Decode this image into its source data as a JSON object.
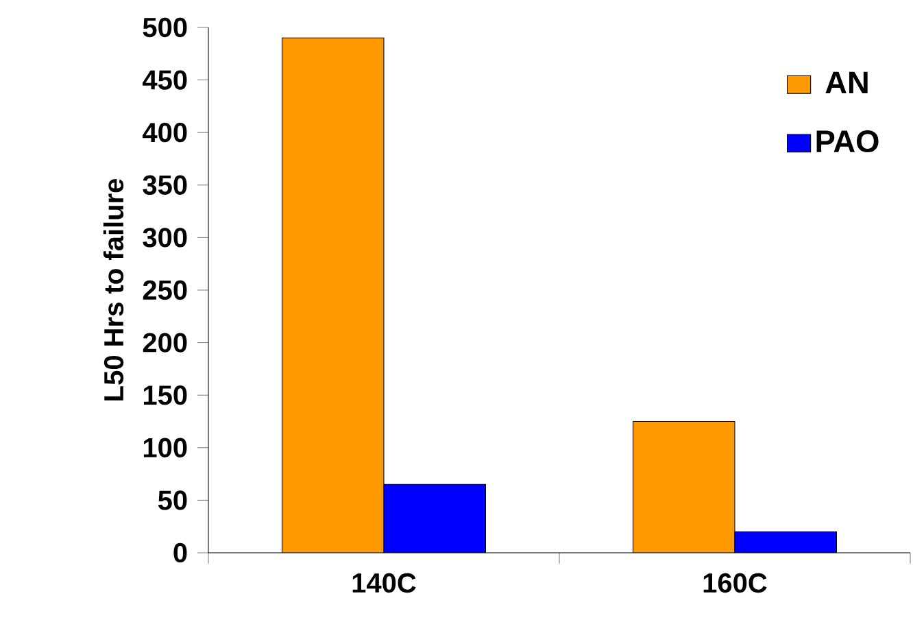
{
  "chart_data": {
    "type": "bar",
    "ylabel": "L50 Hrs to failure",
    "categories": [
      "140C",
      "160C"
    ],
    "series": [
      {
        "name": "AN",
        "color": "#ff9900",
        "values": [
          490,
          125
        ]
      },
      {
        "name": "PAO",
        "color": "#0000ff",
        "values": [
          65,
          20
        ]
      }
    ],
    "ylim": [
      0,
      500
    ],
    "yticks": [
      0,
      50,
      100,
      150,
      200,
      250,
      300,
      350,
      400,
      450,
      500
    ],
    "grid": false,
    "legend": "top right"
  }
}
